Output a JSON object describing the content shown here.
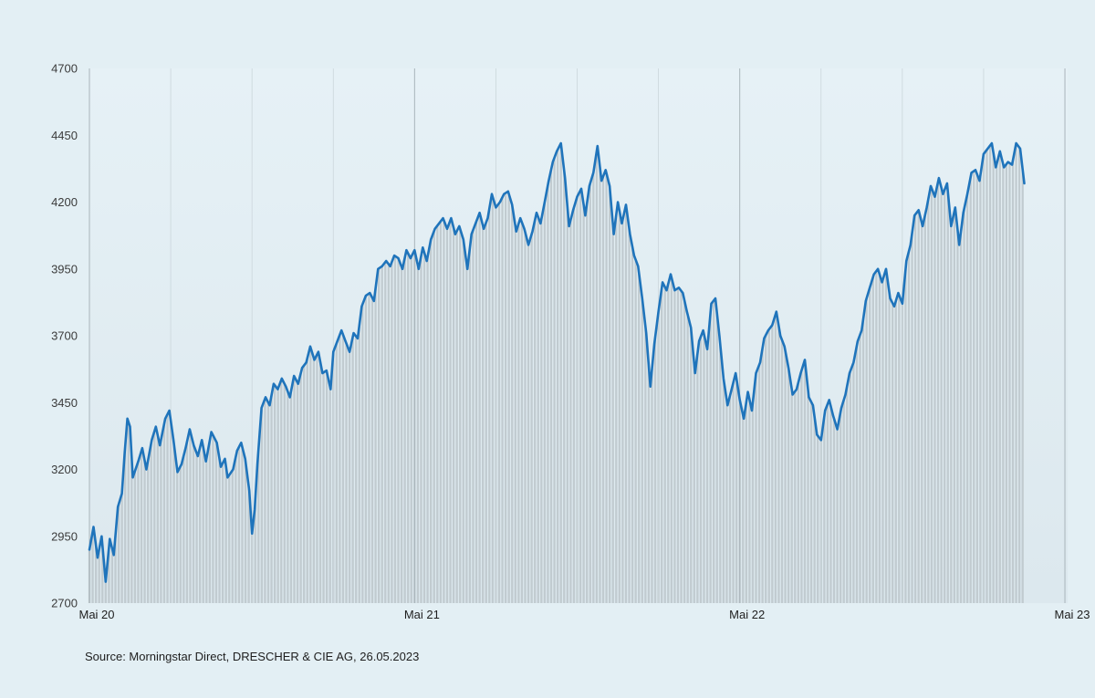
{
  "chart_data": {
    "type": "area",
    "title": "",
    "xlabel": "",
    "ylabel": "",
    "ylim": [
      2700,
      4700
    ],
    "yticks": [
      2700,
      2950,
      3200,
      3450,
      3700,
      3950,
      4200,
      4450,
      4700
    ],
    "xticks": [
      {
        "x": 0,
        "label": "Mai 20"
      },
      {
        "x": 12,
        "label": "Mai 21"
      },
      {
        "x": 24,
        "label": "Mai 22"
      },
      {
        "x": 36,
        "label": "Mai 23"
      }
    ],
    "x_unit": "months since Mai 20",
    "grid": "vertical",
    "series": [
      {
        "name": "",
        "color": "#1f74bb",
        "points": [
          [
            0,
            2900
          ],
          [
            0.15,
            2985
          ],
          [
            0.3,
            2870
          ],
          [
            0.45,
            2950
          ],
          [
            0.6,
            2780
          ],
          [
            0.75,
            2940
          ],
          [
            0.9,
            2880
          ],
          [
            1.05,
            3060
          ],
          [
            1.2,
            3110
          ],
          [
            1.3,
            3260
          ],
          [
            1.4,
            3390
          ],
          [
            1.5,
            3360
          ],
          [
            1.6,
            3170
          ],
          [
            1.8,
            3230
          ],
          [
            1.95,
            3280
          ],
          [
            2.1,
            3200
          ],
          [
            2.3,
            3310
          ],
          [
            2.45,
            3360
          ],
          [
            2.6,
            3290
          ],
          [
            2.8,
            3390
          ],
          [
            2.95,
            3420
          ],
          [
            3.1,
            3310
          ],
          [
            3.25,
            3190
          ],
          [
            3.4,
            3220
          ],
          [
            3.55,
            3280
          ],
          [
            3.7,
            3350
          ],
          [
            3.85,
            3290
          ],
          [
            4.0,
            3250
          ],
          [
            4.15,
            3310
          ],
          [
            4.3,
            3230
          ],
          [
            4.5,
            3340
          ],
          [
            4.7,
            3300
          ],
          [
            4.85,
            3210
          ],
          [
            5.0,
            3240
          ],
          [
            5.1,
            3170
          ],
          [
            5.3,
            3200
          ],
          [
            5.45,
            3270
          ],
          [
            5.6,
            3300
          ],
          [
            5.75,
            3240
          ],
          [
            5.9,
            3120
          ],
          [
            6.0,
            2960
          ],
          [
            6.1,
            3050
          ],
          [
            6.2,
            3220
          ],
          [
            6.35,
            3430
          ],
          [
            6.5,
            3470
          ],
          [
            6.65,
            3440
          ],
          [
            6.8,
            3520
          ],
          [
            6.95,
            3500
          ],
          [
            7.1,
            3540
          ],
          [
            7.25,
            3510
          ],
          [
            7.4,
            3470
          ],
          [
            7.55,
            3550
          ],
          [
            7.7,
            3520
          ],
          [
            7.85,
            3580
          ],
          [
            8.0,
            3600
          ],
          [
            8.15,
            3660
          ],
          [
            8.3,
            3610
          ],
          [
            8.45,
            3640
          ],
          [
            8.6,
            3560
          ],
          [
            8.75,
            3570
          ],
          [
            8.9,
            3500
          ],
          [
            9.0,
            3640
          ],
          [
            9.15,
            3680
          ],
          [
            9.3,
            3720
          ],
          [
            9.45,
            3680
          ],
          [
            9.6,
            3640
          ],
          [
            9.75,
            3710
          ],
          [
            9.9,
            3690
          ],
          [
            10.05,
            3810
          ],
          [
            10.2,
            3850
          ],
          [
            10.35,
            3860
          ],
          [
            10.5,
            3830
          ],
          [
            10.65,
            3950
          ],
          [
            10.8,
            3960
          ],
          [
            10.95,
            3980
          ],
          [
            11.1,
            3960
          ],
          [
            11.25,
            4000
          ],
          [
            11.4,
            3990
          ],
          [
            11.55,
            3950
          ],
          [
            11.7,
            4020
          ],
          [
            11.85,
            3990
          ],
          [
            12.0,
            4020
          ],
          [
            12.15,
            3950
          ],
          [
            12.3,
            4030
          ],
          [
            12.45,
            3980
          ],
          [
            12.6,
            4060
          ],
          [
            12.75,
            4100
          ],
          [
            12.9,
            4120
          ],
          [
            13.05,
            4140
          ],
          [
            13.2,
            4100
          ],
          [
            13.35,
            4140
          ],
          [
            13.5,
            4080
          ],
          [
            13.65,
            4110
          ],
          [
            13.8,
            4060
          ],
          [
            13.95,
            3950
          ],
          [
            14.1,
            4080
          ],
          [
            14.25,
            4120
          ],
          [
            14.4,
            4160
          ],
          [
            14.55,
            4100
          ],
          [
            14.7,
            4140
          ],
          [
            14.85,
            4230
          ],
          [
            15.0,
            4180
          ],
          [
            15.15,
            4200
          ],
          [
            15.3,
            4230
          ],
          [
            15.45,
            4240
          ],
          [
            15.6,
            4190
          ],
          [
            15.75,
            4090
          ],
          [
            15.9,
            4140
          ],
          [
            16.05,
            4100
          ],
          [
            16.2,
            4040
          ],
          [
            16.35,
            4090
          ],
          [
            16.5,
            4160
          ],
          [
            16.65,
            4120
          ],
          [
            16.8,
            4200
          ],
          [
            16.95,
            4280
          ],
          [
            17.1,
            4350
          ],
          [
            17.25,
            4390
          ],
          [
            17.4,
            4420
          ],
          [
            17.55,
            4290
          ],
          [
            17.7,
            4110
          ],
          [
            17.85,
            4170
          ],
          [
            18.0,
            4220
          ],
          [
            18.15,
            4250
          ],
          [
            18.3,
            4150
          ],
          [
            18.45,
            4260
          ],
          [
            18.6,
            4310
          ],
          [
            18.75,
            4410
          ],
          [
            18.9,
            4280
          ],
          [
            19.05,
            4320
          ],
          [
            19.2,
            4260
          ],
          [
            19.35,
            4080
          ],
          [
            19.5,
            4200
          ],
          [
            19.65,
            4120
          ],
          [
            19.8,
            4190
          ],
          [
            19.95,
            4080
          ],
          [
            20.1,
            4000
          ],
          [
            20.25,
            3960
          ],
          [
            20.4,
            3840
          ],
          [
            20.55,
            3710
          ],
          [
            20.7,
            3510
          ],
          [
            20.85,
            3670
          ],
          [
            21.0,
            3790
          ],
          [
            21.15,
            3900
          ],
          [
            21.3,
            3870
          ],
          [
            21.45,
            3930
          ],
          [
            21.6,
            3870
          ],
          [
            21.75,
            3880
          ],
          [
            21.9,
            3860
          ],
          [
            22.05,
            3790
          ],
          [
            22.2,
            3730
          ],
          [
            22.35,
            3560
          ],
          [
            22.5,
            3680
          ],
          [
            22.65,
            3720
          ],
          [
            22.8,
            3650
          ],
          [
            22.95,
            3820
          ],
          [
            23.1,
            3840
          ],
          [
            23.25,
            3700
          ],
          [
            23.4,
            3540
          ],
          [
            23.55,
            3440
          ],
          [
            23.7,
            3500
          ],
          [
            23.85,
            3560
          ],
          [
            24.0,
            3460
          ],
          [
            24.15,
            3390
          ],
          [
            24.3,
            3490
          ],
          [
            24.45,
            3420
          ],
          [
            24.6,
            3560
          ],
          [
            24.75,
            3600
          ],
          [
            24.9,
            3690
          ],
          [
            25.05,
            3720
          ],
          [
            25.2,
            3740
          ],
          [
            25.35,
            3790
          ],
          [
            25.5,
            3700
          ],
          [
            25.65,
            3660
          ],
          [
            25.8,
            3580
          ],
          [
            25.95,
            3480
          ],
          [
            26.1,
            3500
          ],
          [
            26.25,
            3560
          ],
          [
            26.4,
            3610
          ],
          [
            26.55,
            3470
          ],
          [
            26.7,
            3440
          ],
          [
            26.85,
            3330
          ],
          [
            27.0,
            3310
          ],
          [
            27.15,
            3420
          ],
          [
            27.3,
            3460
          ],
          [
            27.45,
            3400
          ],
          [
            27.6,
            3350
          ],
          [
            27.75,
            3430
          ],
          [
            27.9,
            3480
          ],
          [
            28.05,
            3560
          ],
          [
            28.2,
            3600
          ],
          [
            28.35,
            3680
          ],
          [
            28.5,
            3720
          ],
          [
            28.65,
            3830
          ],
          [
            28.8,
            3880
          ],
          [
            28.95,
            3930
          ],
          [
            29.1,
            3950
          ],
          [
            29.25,
            3900
          ],
          [
            29.4,
            3950
          ],
          [
            29.55,
            3840
          ],
          [
            29.7,
            3810
          ],
          [
            29.85,
            3860
          ],
          [
            30.0,
            3820
          ],
          [
            30.15,
            3980
          ],
          [
            30.3,
            4040
          ],
          [
            30.45,
            4150
          ],
          [
            30.6,
            4170
          ],
          [
            30.75,
            4110
          ],
          [
            30.9,
            4180
          ],
          [
            31.05,
            4260
          ],
          [
            31.2,
            4220
          ],
          [
            31.35,
            4290
          ],
          [
            31.5,
            4230
          ],
          [
            31.65,
            4270
          ],
          [
            31.8,
            4110
          ],
          [
            31.95,
            4180
          ],
          [
            32.1,
            4040
          ],
          [
            32.25,
            4160
          ],
          [
            32.4,
            4230
          ],
          [
            32.55,
            4310
          ],
          [
            32.7,
            4320
          ],
          [
            32.85,
            4280
          ],
          [
            33.0,
            4380
          ],
          [
            33.15,
            4400
          ],
          [
            33.3,
            4420
          ],
          [
            33.45,
            4330
          ],
          [
            33.6,
            4390
          ],
          [
            33.75,
            4330
          ],
          [
            33.9,
            4350
          ],
          [
            34.05,
            4340
          ],
          [
            34.2,
            4420
          ],
          [
            34.35,
            4400
          ],
          [
            34.5,
            4270
          ]
        ]
      }
    ],
    "source": "Source: Morningstar Direct, DRESCHER & CIE AG, 26.05.2023"
  }
}
